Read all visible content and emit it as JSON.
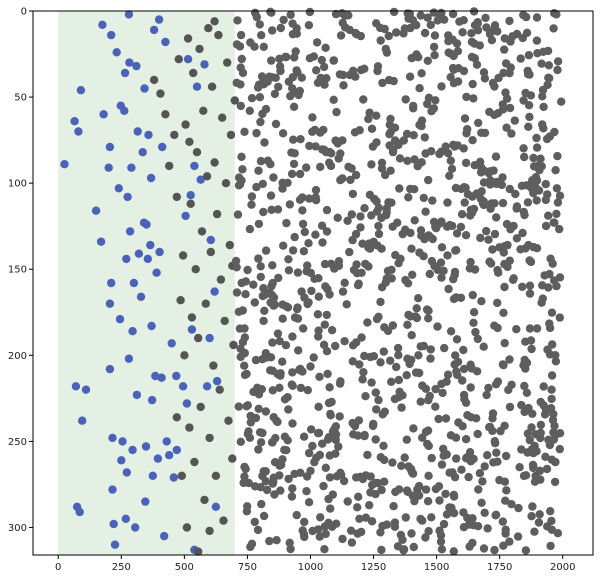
{
  "chart_data": {
    "type": "scatter",
    "title": "",
    "xlabel": "",
    "ylabel": "",
    "xlim": [
      -100,
      2120
    ],
    "ylim": [
      316,
      0
    ],
    "y_inverted": true,
    "x_ticks": [
      0,
      250,
      500,
      750,
      1000,
      1250,
      1500,
      1750,
      2000
    ],
    "y_ticks": [
      0,
      50,
      100,
      150,
      200,
      250,
      300
    ],
    "grid": false,
    "legend": "none",
    "shaded_region": {
      "x_start": 0,
      "x_end": 700,
      "color": "#e4f0e4"
    },
    "series": [
      {
        "color": "#4a62b8",
        "points": [
          [
            25,
            89
          ],
          [
            65,
            64
          ],
          [
            70,
            218
          ],
          [
            75,
            288
          ],
          [
            80,
            70
          ],
          [
            90,
            46
          ],
          [
            85,
            291
          ],
          [
            95,
            238
          ],
          [
            110,
            220
          ],
          [
            150,
            116
          ],
          [
            170,
            134
          ],
          [
            175,
            8
          ],
          [
            180,
            60
          ],
          [
            200,
            91
          ],
          [
            205,
            79
          ],
          [
            205,
            170
          ],
          [
            205,
            208
          ],
          [
            210,
            14
          ],
          [
            210,
            158
          ],
          [
            215,
            248
          ],
          [
            215,
            278
          ],
          [
            220,
            298
          ],
          [
            225,
            310
          ],
          [
            232,
            24
          ],
          [
            240,
            103
          ],
          [
            245,
            179
          ],
          [
            248,
            55
          ],
          [
            250,
            261
          ],
          [
            255,
            250
          ],
          [
            262,
            58
          ],
          [
            265,
            36
          ],
          [
            268,
            295
          ],
          [
            270,
            144
          ],
          [
            272,
            268
          ],
          [
            275,
            108
          ],
          [
            280,
            202
          ],
          [
            280,
            2
          ],
          [
            282,
            30
          ],
          [
            285,
            128
          ],
          [
            290,
            91
          ],
          [
            295,
            255
          ],
          [
            295,
            186
          ],
          [
            300,
            158
          ],
          [
            305,
            300
          ],
          [
            310,
            32
          ],
          [
            312,
            223
          ],
          [
            315,
            70
          ],
          [
            320,
            141
          ],
          [
            328,
            166
          ],
          [
            335,
            82
          ],
          [
            340,
            123
          ],
          [
            342,
            45
          ],
          [
            345,
            285
          ],
          [
            348,
            253
          ],
          [
            350,
            124
          ],
          [
            355,
            144
          ],
          [
            358,
            72
          ],
          [
            365,
            136
          ],
          [
            368,
            97
          ],
          [
            370,
            183
          ],
          [
            372,
            226
          ],
          [
            375,
            270
          ],
          [
            380,
            11
          ],
          [
            385,
            212
          ],
          [
            390,
            152
          ],
          [
            395,
            260
          ],
          [
            400,
            5
          ],
          [
            402,
            140
          ],
          [
            410,
            213
          ],
          [
            412,
            79
          ],
          [
            420,
            305
          ],
          [
            425,
            18
          ],
          [
            430,
            250
          ],
          [
            440,
            258
          ],
          [
            450,
            193
          ],
          [
            458,
            271
          ],
          [
            468,
            212
          ],
          [
            470,
            255
          ],
          [
            495,
            218
          ],
          [
            505,
            119
          ],
          [
            510,
            228
          ],
          [
            515,
            28
          ],
          [
            525,
            107
          ],
          [
            530,
            185
          ],
          [
            540,
            90
          ],
          [
            540,
            313
          ],
          [
            550,
            44
          ],
          [
            565,
            98
          ],
          [
            580,
            31
          ],
          [
            590,
            218
          ],
          [
            600,
            190
          ],
          [
            605,
            133
          ],
          [
            620,
            163
          ],
          [
            625,
            288
          ],
          [
            630,
            215
          ]
        ]
      },
      {
        "color": "#555555",
        "points": [
          [
            380,
            40
          ],
          [
            405,
            48
          ],
          [
            425,
            60
          ],
          [
            440,
            90
          ],
          [
            460,
            72
          ],
          [
            470,
            108
          ],
          [
            478,
            28
          ],
          [
            485,
            168
          ],
          [
            490,
            270
          ],
          [
            495,
            142
          ],
          [
            500,
            200
          ],
          [
            505,
            66
          ],
          [
            510,
            300
          ],
          [
            515,
            16
          ],
          [
            520,
            242
          ],
          [
            525,
            112
          ],
          [
            530,
            178
          ],
          [
            535,
            36
          ],
          [
            540,
            262
          ],
          [
            545,
            150
          ],
          [
            550,
            82
          ],
          [
            555,
            190
          ],
          [
            560,
            22
          ],
          [
            565,
            230
          ],
          [
            570,
            128
          ],
          [
            575,
            58
          ],
          [
            580,
            284
          ],
          [
            585,
            170
          ],
          [
            590,
            96
          ],
          [
            595,
            10
          ],
          [
            600,
            248
          ],
          [
            605,
            140
          ],
          [
            610,
            44
          ],
          [
            615,
            206
          ],
          [
            620,
            88
          ],
          [
            625,
            270
          ],
          [
            630,
            118
          ],
          [
            635,
            14
          ],
          [
            640,
            220
          ],
          [
            645,
            156
          ],
          [
            650,
            62
          ],
          [
            655,
            296
          ],
          [
            660,
            180
          ],
          [
            665,
            100
          ],
          [
            670,
            30
          ],
          [
            675,
            238
          ],
          [
            680,
            136
          ],
          [
            685,
            72
          ],
          [
            690,
            260
          ],
          [
            695,
            194
          ],
          [
            700,
            52
          ],
          [
            690,
            148
          ],
          [
            620,
            6
          ],
          [
            600,
            302
          ],
          [
            555,
            314
          ],
          [
            520,
            76
          ],
          [
            470,
            236
          ]
        ]
      },
      {
        "color": "#5e5e5e",
        "points": []
      }
    ]
  }
}
